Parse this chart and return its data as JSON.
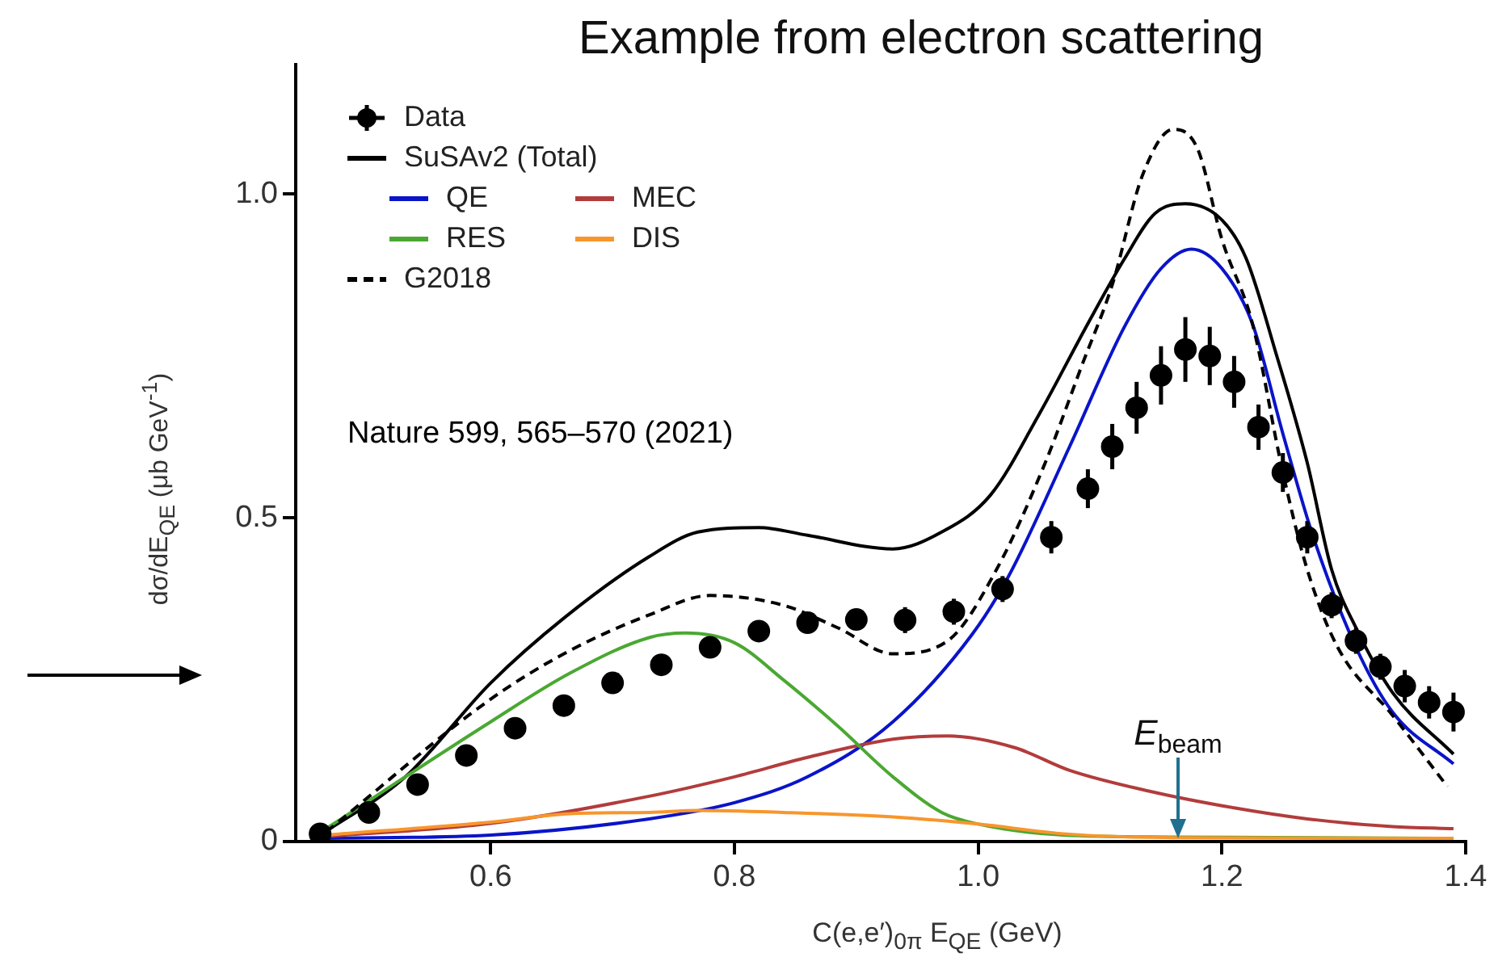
{
  "chart_data": {
    "type": "line",
    "title": "Example from electron scattering",
    "xlabel": "C(e,e′)$_{0π}$ E$_{QE}$ (GeV)",
    "ylabel": "dσ/dE$_{QE}$ (μb GeV$^{-1}$)",
    "xlim": [
      0.44,
      1.4
    ],
    "ylim": [
      0,
      1.2
    ],
    "xticks": [
      0.6,
      0.8,
      {
        "value": 1,
        "label": "1.0"
      },
      1.2,
      1.4
    ],
    "yticks": [
      0,
      0.5,
      {
        "value": 1,
        "label": "1.0"
      }
    ],
    "grid": false,
    "legend": "top left",
    "annotations": [
      "Nature 599, 565–570 (2021)",
      {
        "text": "E$_{beam}$",
        "x": 1.164,
        "y": 0
      }
    ],
    "series": [
      {
        "name": "Data",
        "type": "scatter",
        "marker": "circle",
        "color": "#000000",
        "x": [
          0.46,
          0.5,
          0.54,
          0.58,
          0.62,
          0.66,
          0.7,
          0.74,
          0.78,
          0.82,
          0.86,
          0.9,
          0.94,
          0.98,
          1.02,
          1.06,
          1.09,
          1.11,
          1.13,
          1.15,
          1.17,
          1.19,
          1.21,
          1.23,
          1.25,
          1.27,
          1.29,
          1.31,
          1.33,
          1.35,
          1.37,
          1.39
        ],
        "values": [
          0.012,
          0.045,
          0.088,
          0.133,
          0.175,
          0.21,
          0.245,
          0.273,
          0.3,
          0.325,
          0.338,
          0.343,
          0.342,
          0.355,
          0.39,
          0.47,
          0.545,
          0.61,
          0.67,
          0.72,
          0.76,
          0.75,
          0.71,
          0.64,
          0.57,
          0.47,
          0.365,
          0.31,
          0.27,
          0.24,
          0.215,
          0.2
        ],
        "errors": [
          null,
          null,
          null,
          null,
          null,
          null,
          null,
          null,
          null,
          null,
          0.015,
          0.015,
          0.02,
          0.02,
          0.02,
          0.025,
          0.03,
          0.035,
          0.04,
          0.045,
          0.05,
          0.045,
          0.04,
          0.035,
          0.03,
          0.025,
          0.02,
          0.02,
          0.02,
          0.025,
          0.025,
          0.03
        ]
      },
      {
        "name": "SuSAv2 (Total)",
        "type": "line",
        "color": "#000000",
        "line_style": "solid",
        "x": [
          0.46,
          0.53,
          0.6,
          0.66,
          0.73,
          0.77,
          0.82,
          0.86,
          0.93,
          0.97,
          1.01,
          1.05,
          1.09,
          1.12,
          1.145,
          1.17,
          1.2,
          1.22,
          1.245,
          1.27,
          1.29,
          1.31,
          1.34,
          1.39
        ],
        "values": [
          0.01,
          0.1,
          0.245,
          0.345,
          0.44,
          0.478,
          0.485,
          0.473,
          0.452,
          0.478,
          0.535,
          0.66,
          0.8,
          0.9,
          0.97,
          0.985,
          0.96,
          0.9,
          0.75,
          0.585,
          0.42,
          0.33,
          0.23,
          0.135
        ]
      },
      {
        "name": "QE",
        "type": "line",
        "color": "#0a14c8",
        "line_style": "solid",
        "x": [
          0.465,
          0.6,
          0.73,
          0.8,
          0.86,
          0.93,
          0.995,
          1.025,
          1.075,
          1.12,
          1.15,
          1.175,
          1.2,
          1.225,
          1.25,
          1.275,
          1.31,
          1.34,
          1.39
        ],
        "values": [
          0.005,
          0.01,
          0.035,
          0.06,
          0.1,
          0.185,
          0.32,
          0.41,
          0.61,
          0.795,
          0.885,
          0.915,
          0.885,
          0.8,
          0.63,
          0.47,
          0.3,
          0.2,
          0.12
        ]
      },
      {
        "name": "MEC",
        "type": "line",
        "color": "#b23c3c",
        "line_style": "solid",
        "x": [
          0.465,
          0.6,
          0.73,
          0.8,
          0.86,
          0.93,
          0.975,
          1.03,
          1.075,
          1.14,
          1.21,
          1.27,
          1.34,
          1.39
        ],
        "values": [
          0.008,
          0.028,
          0.07,
          0.1,
          0.13,
          0.158,
          0.163,
          0.145,
          0.11,
          0.078,
          0.052,
          0.035,
          0.023,
          0.02
        ]
      },
      {
        "name": "RES",
        "type": "line",
        "color": "#4aa832",
        "line_style": "solid",
        "x": [
          0.465,
          0.6,
          0.665,
          0.73,
          0.76,
          0.8,
          0.84,
          0.885,
          0.93,
          0.97,
          1.0,
          1.07,
          1.16,
          1.39
        ],
        "values": [
          0.02,
          0.185,
          0.26,
          0.315,
          0.322,
          0.307,
          0.25,
          0.178,
          0.1,
          0.045,
          0.027,
          0.01,
          0.007,
          0.005
        ]
      },
      {
        "name": "DIS",
        "type": "line",
        "color": "#f7962d",
        "line_style": "solid",
        "x": [
          0.465,
          0.6,
          0.665,
          0.73,
          0.77,
          0.84,
          0.93,
          1.0,
          1.07,
          1.16,
          1.39
        ],
        "values": [
          0.01,
          0.03,
          0.043,
          0.045,
          0.048,
          0.045,
          0.038,
          0.027,
          0.012,
          0.006,
          0.005
        ]
      },
      {
        "name": "G2018",
        "type": "line",
        "color": "#000000",
        "line_style": "dashed",
        "x": [
          0.465,
          0.6,
          0.665,
          0.73,
          0.78,
          0.84,
          0.885,
          0.93,
          0.975,
          1.015,
          1.055,
          1.085,
          1.11,
          1.135,
          1.16,
          1.18,
          1.2,
          1.225,
          1.25,
          1.27,
          1.295,
          1.34,
          1.385
        ],
        "values": [
          0.015,
          0.22,
          0.295,
          0.35,
          0.38,
          0.365,
          0.33,
          0.29,
          0.31,
          0.42,
          0.585,
          0.735,
          0.86,
          1.03,
          1.1,
          1.07,
          0.93,
          0.8,
          0.57,
          0.42,
          0.3,
          0.195,
          0.085
        ]
      }
    ]
  }
}
